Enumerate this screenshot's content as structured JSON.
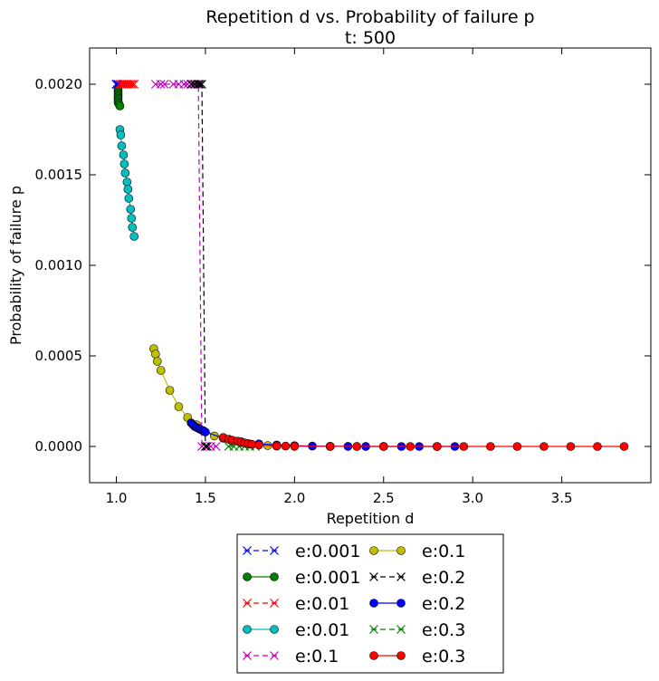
{
  "chart_data": {
    "type": "line",
    "title": "Repetition d vs. Probability of failure p",
    "subtitle": "t: 500",
    "xlabel": "Repetition d",
    "ylabel": "Probability of failure p",
    "xlim": [
      0.85,
      4.0
    ],
    "ylim": [
      -0.0002,
      0.0022
    ],
    "xticks": [
      1.0,
      1.5,
      2.0,
      2.5,
      3.0,
      3.5
    ],
    "xtick_labels": [
      "1.0",
      "1.5",
      "2.0",
      "2.5",
      "3.0",
      "3.5"
    ],
    "yticks": [
      0.0,
      0.0005,
      0.001,
      0.0015,
      0.002
    ],
    "ytick_labels": [
      "0.0000",
      "0.0005",
      "0.0010",
      "0.0015",
      "0.0020"
    ],
    "grid": false,
    "legend_position": "below plot, two columns",
    "series": [
      {
        "name": "e:0.001",
        "color": "#0000ff",
        "marker": "x",
        "linestyle": "dashed",
        "x": [
          1.0,
          1.0,
          1.0,
          1.0,
          1.0,
          1.0,
          1.01
        ],
        "y": [
          0.002,
          0.002,
          0.002,
          0.002,
          0.002,
          0.002,
          0.002
        ]
      },
      {
        "name": "e:0.001",
        "color": "#008000",
        "marker": "o",
        "linestyle": "solid",
        "x": [
          1.01,
          1.01,
          1.01,
          1.01,
          1.01,
          1.01,
          1.01,
          1.01,
          1.015,
          1.02
        ],
        "y": [
          0.00197,
          0.00196,
          0.00195,
          0.00194,
          0.00193,
          0.00192,
          0.00191,
          0.0019,
          0.00189,
          0.00188
        ]
      },
      {
        "name": "e:0.01",
        "color": "#ff0000",
        "marker": "x",
        "linestyle": "dashed",
        "x": [
          1.02,
          1.03,
          1.04,
          1.05,
          1.06,
          1.07,
          1.08,
          1.09,
          1.1
        ],
        "y": [
          0.002,
          0.002,
          0.002,
          0.002,
          0.002,
          0.002,
          0.002,
          0.002,
          0.002
        ]
      },
      {
        "name": "e:0.01",
        "color": "#00bfbf",
        "marker": "o",
        "linestyle": "solid",
        "x": [
          1.02,
          1.025,
          1.03,
          1.04,
          1.045,
          1.05,
          1.06,
          1.065,
          1.07,
          1.08,
          1.085,
          1.09,
          1.1
        ],
        "y": [
          0.00175,
          0.00172,
          0.00166,
          0.00161,
          0.00156,
          0.00151,
          0.00146,
          0.00142,
          0.00137,
          0.00131,
          0.00126,
          0.00121,
          0.00116
        ]
      },
      {
        "name": "e:0.1",
        "color": "#bf00bf",
        "marker": "x",
        "linestyle": "dashed",
        "x": [
          1.22,
          1.25,
          1.27,
          1.32,
          1.35,
          1.38,
          1.4,
          1.42,
          1.43,
          1.45,
          1.46,
          1.48,
          1.5,
          1.53,
          1.56
        ],
        "y": [
          0.002,
          0.002,
          0.002,
          0.002,
          0.002,
          0.002,
          0.002,
          0.002,
          0.002,
          0.002,
          0.002,
          0.0,
          0.0,
          0.0,
          0.0
        ]
      },
      {
        "name": "e:0.1",
        "color": "#bfbf00",
        "marker": "o",
        "linestyle": "solid",
        "x": [
          1.21,
          1.22,
          1.23,
          1.25,
          1.3,
          1.35,
          1.4,
          1.45,
          1.55,
          1.65,
          1.75,
          1.85,
          1.9
        ],
        "y": [
          0.00054,
          0.00051,
          0.00047,
          0.00042,
          0.00031,
          0.00022,
          0.00016,
          0.00012,
          5.8e-05,
          2.8e-05,
          1.3e-05,
          5e-06,
          2e-06
        ]
      },
      {
        "name": "e:0.2",
        "color": "#000000",
        "marker": "x",
        "linestyle": "dashed",
        "x": [
          1.42,
          1.44,
          1.46,
          1.47,
          1.48,
          1.5,
          1.51
        ],
        "y": [
          0.002,
          0.002,
          0.002,
          0.002,
          0.002,
          0.0,
          0.0
        ]
      },
      {
        "name": "e:0.2",
        "color": "#0000ff",
        "marker": "o",
        "linestyle": "solid",
        "x": [
          1.42,
          1.43,
          1.44,
          1.45,
          1.46,
          1.47,
          1.48,
          1.49,
          1.5,
          1.6,
          1.7,
          1.8,
          1.9,
          2.0,
          2.1,
          2.2,
          2.3,
          2.4,
          2.5,
          2.6,
          2.7,
          2.8,
          2.9
        ],
        "y": [
          0.00013,
          0.00012,
          0.00011,
          0.000105,
          0.0001,
          9.5e-05,
          9e-05,
          8.5e-05,
          8e-05,
          4.6e-05,
          2.6e-05,
          1.4e-05,
          8e-06,
          4e-06,
          2e-06,
          1e-06,
          5e-07,
          2e-07,
          1e-07,
          0.0,
          0.0,
          0.0,
          0.0
        ]
      },
      {
        "name": "e:0.3",
        "color": "#008000",
        "marker": "x",
        "linestyle": "dashed",
        "x": [
          1.63,
          1.66,
          1.69,
          1.72,
          1.75,
          1.78
        ],
        "y": [
          0.0,
          0.0,
          0.0,
          0.0,
          0.0,
          0.0
        ]
      },
      {
        "name": "e:0.3",
        "color": "#ff0000",
        "marker": "o",
        "linestyle": "solid",
        "x": [
          1.6,
          1.63,
          1.65,
          1.68,
          1.7,
          1.72,
          1.74,
          1.76,
          1.8,
          1.9,
          1.95,
          2.0,
          2.2,
          2.35,
          2.5,
          2.65,
          2.8,
          2.95,
          3.1,
          3.25,
          3.4,
          3.55,
          3.7,
          3.85
        ],
        "y": [
          5e-05,
          4e-05,
          3.5e-05,
          3e-05,
          2.5e-05,
          2e-05,
          1.6e-05,
          1.2e-05,
          8e-06,
          3e-06,
          2e-06,
          1e-06,
          3e-07,
          1e-07,
          0.0,
          0.0,
          0.0,
          0.0,
          0.0,
          0.0,
          0.0,
          0.0,
          0.0,
          0.0
        ]
      }
    ]
  }
}
